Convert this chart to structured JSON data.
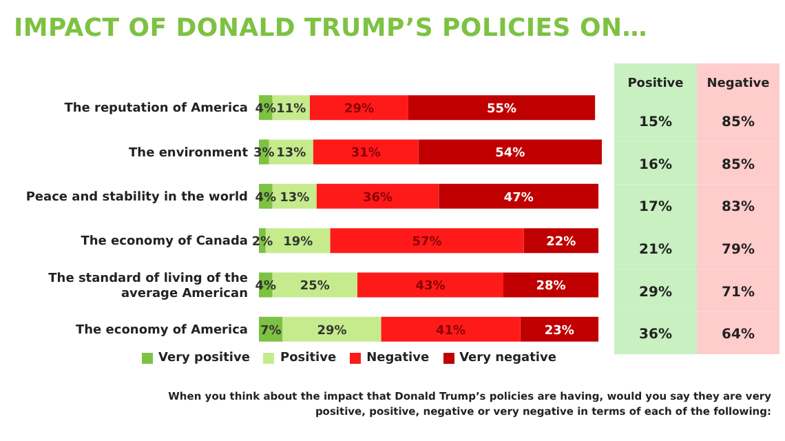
{
  "chart_data": [
    {
      "type": "bar",
      "title": "IMPACT OF DONALD TRUMP’S POLICIES ON…",
      "orientation": "horizontal",
      "stacked": true,
      "legend": "bottom",
      "tick_labels": "y",
      "xlim": [
        0,
        101
      ],
      "categories": [
        "The reputation of America",
        "The environment",
        "Peace and stability in the world",
        "The economy of Canada",
        "The standard of living of the average American",
        "The economy of America"
      ],
      "series": [
        {
          "name": "Very positive",
          "color": "#7dc242",
          "values": [
            4,
            3,
            4,
            2,
            4,
            7
          ],
          "value_labels": [
            "4%",
            "3%",
            "4%",
            "2%",
            "4%",
            "7%"
          ]
        },
        {
          "name": "Positive",
          "color": "#c6eb8c",
          "values": [
            11,
            13,
            13,
            19,
            25,
            29
          ],
          "value_labels": [
            "11%",
            "13%",
            "13%",
            "19%",
            "25%",
            "29%"
          ]
        },
        {
          "name": "Negative",
          "color": "#ff1a1a",
          "values": [
            29,
            31,
            36,
            57,
            43,
            41
          ],
          "value_labels": [
            "29%",
            "31%",
            "36%",
            "57%",
            "43%",
            "41%"
          ]
        },
        {
          "name": "Very negative",
          "color": "#c00000",
          "values": [
            55,
            54,
            47,
            22,
            28,
            23
          ],
          "value_labels": [
            "55%",
            "54%",
            "47%",
            "22%",
            "28%",
            "23%"
          ]
        }
      ],
      "annotations": [
        "When you think about the impact that Donald Trump’s policies are having, would you say they are very positive, positive, negative or very negative in terms of each of the following:"
      ]
    },
    {
      "type": "heatmap",
      "categories": [
        "Positive",
        "Negative"
      ],
      "y_categories": [
        null,
        null,
        null,
        null,
        null,
        null
      ],
      "colors": [
        "#c8f0c0",
        "#ffcccc"
      ],
      "cells": [
        [
          15,
          85
        ],
        [
          16,
          85
        ],
        [
          17,
          83
        ],
        [
          21,
          79
        ],
        [
          29,
          71
        ],
        [
          36,
          64
        ]
      ],
      "cell_labels": [
        [
          "15%",
          "85%"
        ],
        [
          "16%",
          "85%"
        ],
        [
          "17%",
          "83%"
        ],
        [
          "21%",
          "79%"
        ],
        [
          "29%",
          "71%"
        ],
        [
          "36%",
          "64%"
        ]
      ]
    }
  ]
}
